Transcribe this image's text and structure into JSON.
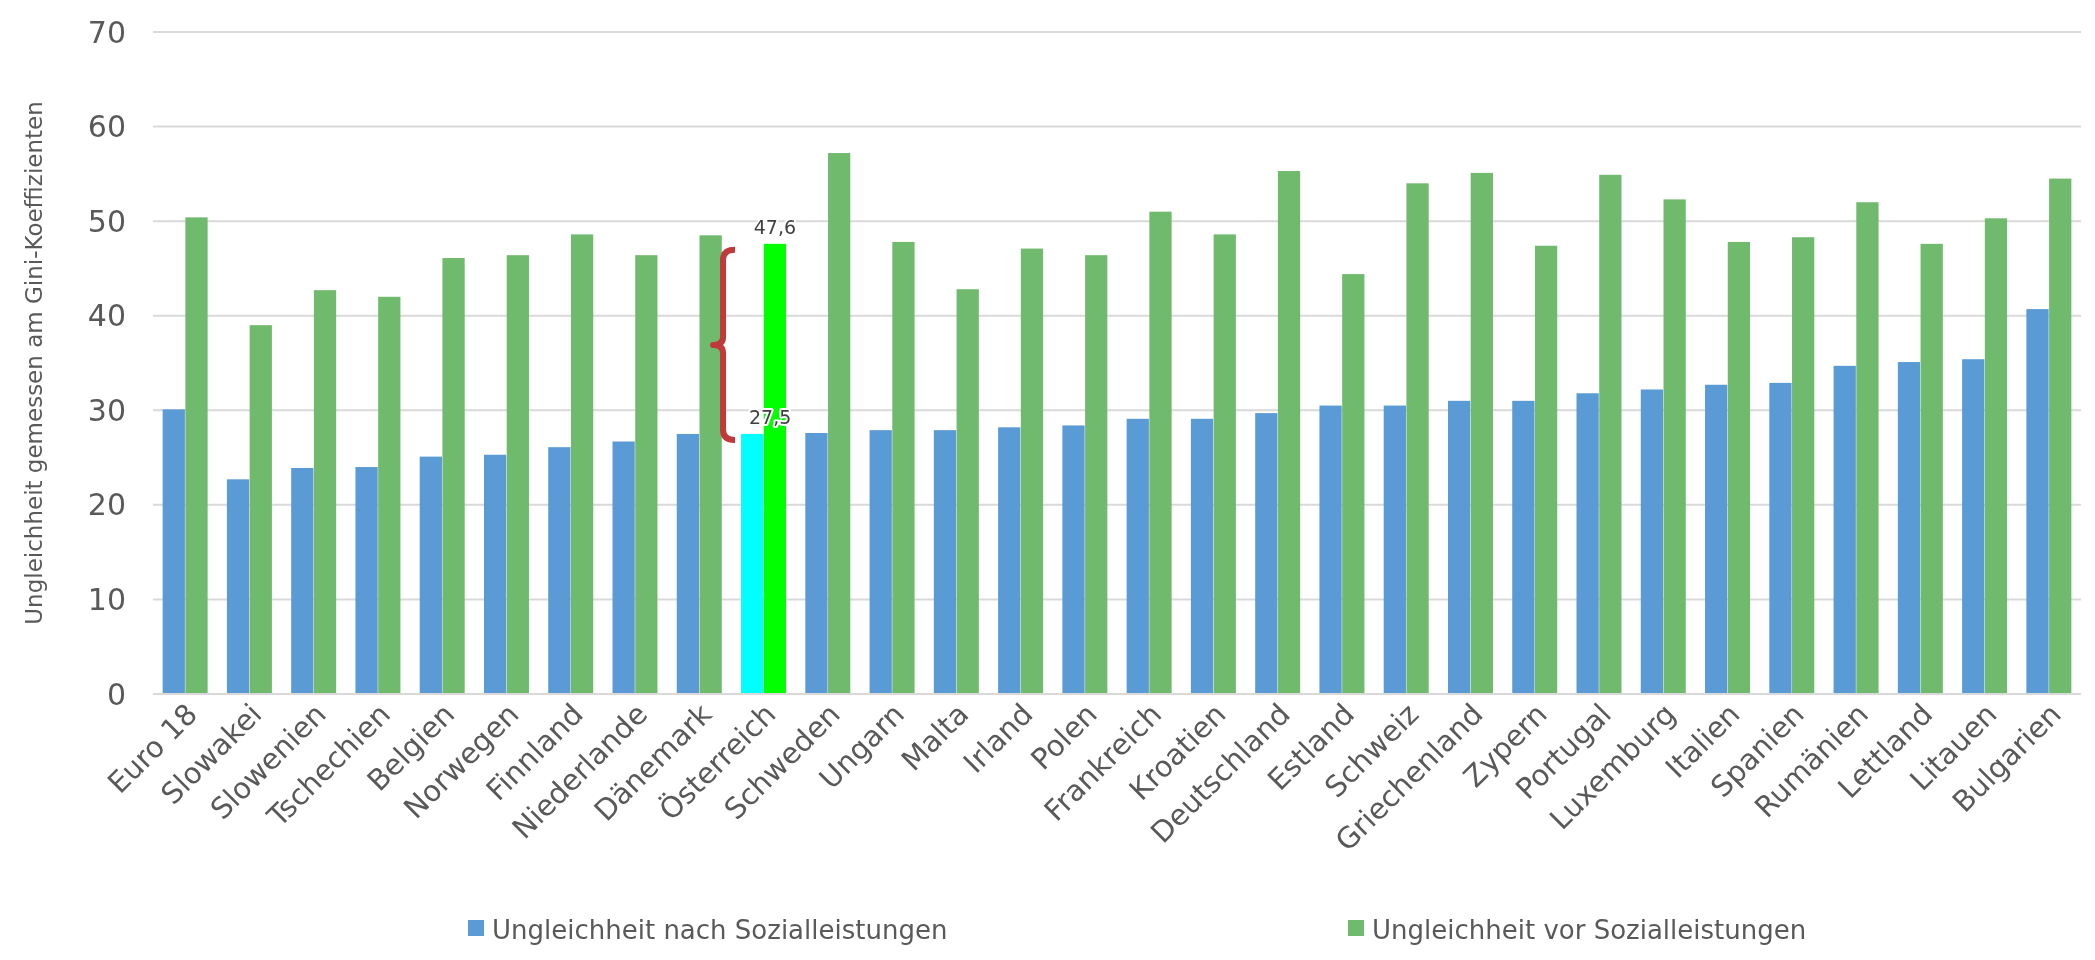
{
  "chart_data": {
    "type": "bar",
    "ylabel": "Ungleichheit gemessen am Gini-Koeffizienten",
    "categories": [
      "Euro 18",
      "Slowakei",
      "Slowenien",
      "Tschechien",
      "Belgien",
      "Norwegen",
      "Finnland",
      "Niederlande",
      "Dänemark",
      "Österreich",
      "Schweden",
      "Ungarn",
      "Malta",
      "Irland",
      "Polen",
      "Frankreich",
      "Kroatien",
      "Deutschland",
      "Estland",
      "Schweiz",
      "Griechenland",
      "Zypern",
      "Portugal",
      "Luxemburg",
      "Italien",
      "Spanien",
      "Rumänien",
      "Lettland",
      "Litauen",
      "Bulgarien"
    ],
    "series": [
      {
        "name": "Ungleichheit nach Sozialleistungen",
        "color": "#5b9bd5",
        "colors": [
          "#5b9bd5",
          "#5b9bd5",
          "#5b9bd5",
          "#5b9bd5",
          "#5b9bd5",
          "#5b9bd5",
          "#5b9bd5",
          "#5b9bd5",
          "#5b9bd5",
          "#00ffff",
          "#5b9bd5",
          "#5b9bd5",
          "#5b9bd5",
          "#5b9bd5",
          "#5b9bd5",
          "#5b9bd5",
          "#5b9bd5",
          "#5b9bd5",
          "#5b9bd5",
          "#5b9bd5",
          "#5b9bd5",
          "#5b9bd5",
          "#5b9bd5",
          "#5b9bd5",
          "#5b9bd5",
          "#5b9bd5",
          "#5b9bd5",
          "#5b9bd5",
          "#5b9bd5",
          "#5b9bd5"
        ],
        "values": [
          30.1,
          22.7,
          23.9,
          24.0,
          25.1,
          25.3,
          26.1,
          26.7,
          27.5,
          27.5,
          27.6,
          27.9,
          27.9,
          28.2,
          28.4,
          29.1,
          29.1,
          29.7,
          30.5,
          30.5,
          31.0,
          31.0,
          31.8,
          32.2,
          32.7,
          32.9,
          34.7,
          35.1,
          35.4,
          40.7
        ],
        "value_labels": [
          null,
          null,
          null,
          null,
          null,
          null,
          null,
          null,
          null,
          "27,5",
          null,
          null,
          null,
          null,
          null,
          null,
          null,
          null,
          null,
          null,
          null,
          null,
          null,
          null,
          null,
          null,
          null,
          null,
          null,
          null
        ]
      },
      {
        "name": "Ungleichheit vor Sozialleistungen",
        "color": "#70ba6d",
        "colors": [
          "#70ba6d",
          "#70ba6d",
          "#70ba6d",
          "#70ba6d",
          "#70ba6d",
          "#70ba6d",
          "#70ba6d",
          "#70ba6d",
          "#70ba6d",
          "#00ff00",
          "#70ba6d",
          "#70ba6d",
          "#70ba6d",
          "#70ba6d",
          "#70ba6d",
          "#70ba6d",
          "#70ba6d",
          "#70ba6d",
          "#70ba6d",
          "#70ba6d",
          "#70ba6d",
          "#70ba6d",
          "#70ba6d",
          "#70ba6d",
          "#70ba6d",
          "#70ba6d",
          "#70ba6d",
          "#70ba6d",
          "#70ba6d",
          "#70ba6d"
        ],
        "values": [
          50.4,
          39.0,
          42.7,
          42.0,
          46.1,
          46.4,
          48.6,
          46.4,
          48.5,
          47.6,
          57.2,
          47.8,
          42.8,
          47.1,
          46.4,
          51.0,
          48.6,
          55.3,
          44.4,
          54.0,
          55.1,
          47.4,
          54.9,
          52.3,
          47.8,
          48.3,
          52.0,
          47.6,
          50.3,
          54.5
        ],
        "value_labels": [
          null,
          null,
          null,
          null,
          null,
          null,
          null,
          null,
          null,
          "47,6",
          null,
          null,
          null,
          null,
          null,
          null,
          null,
          null,
          null,
          null,
          null,
          null,
          null,
          null,
          null,
          null,
          null,
          null,
          null,
          null
        ]
      }
    ],
    "ylim": [
      0,
      70
    ],
    "yticks": [
      0,
      10,
      20,
      30,
      40,
      50,
      60,
      70
    ],
    "grid": "y",
    "legend": "bottom"
  }
}
